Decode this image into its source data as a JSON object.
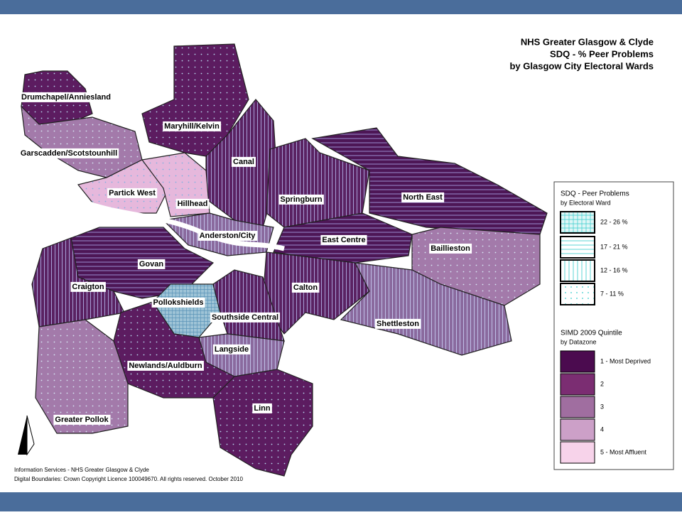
{
  "title": [
    "NHS Greater Glasgow & Clyde",
    "SDQ - % Peer Problems",
    "by Glasgow City Electoral Wards"
  ],
  "wards": [
    "Drumchapel/Anniesland",
    "Maryhill/Kelvin",
    "Garscadden/Scotstounhill",
    "Canal",
    "Partick West",
    "Hillhead",
    "Springburn",
    "North East",
    "Anderston/City",
    "East Centre",
    "Baillieston",
    "Govan",
    "Craigton",
    "Calton",
    "Pollokshields",
    "Southside Central",
    "Shettleston",
    "Langside",
    "Newlands/Auldburn",
    "Linn",
    "Greater Pollok"
  ],
  "legend": {
    "sdq": {
      "title": "SDQ - Peer Problems",
      "subtitle": "by Electoral Ward",
      "items": [
        "22 - 26 %",
        "17 - 21 %",
        "12 - 16 %",
        "7 - 11 %"
      ]
    },
    "simd": {
      "title": "SIMD 2009 Quintile",
      "subtitle": "by Datazone",
      "items": [
        "1 - Most Deprived",
        "2",
        "3",
        "4",
        "5 - Most Affluent"
      ]
    }
  },
  "footer": [
    "Information Services - NHS Greater Glasgow & Clyde",
    "Digital Boundaries: Crown Copyright Licence 100049670.  All rights reserved. October 2010"
  ]
}
